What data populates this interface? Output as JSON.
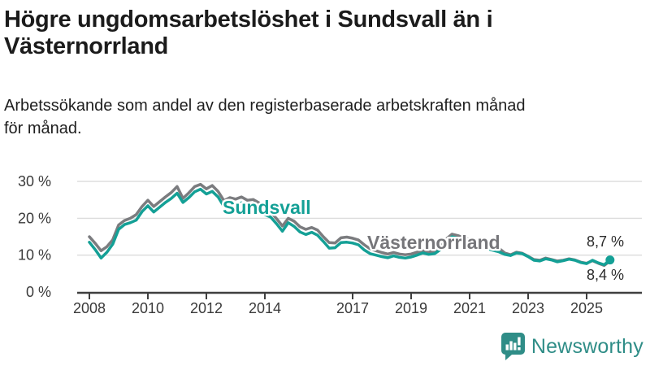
{
  "header": {
    "title_lines": [
      "Högre ungdomsarbetslöshet i Sundsvall än i",
      "Västernorrland"
    ],
    "subtitle_lines": [
      "Arbetssökande som andel av den registerbaserade arbetskraften månad",
      "för månad."
    ]
  },
  "footer": {
    "brand": "Newsworthy"
  },
  "colors": {
    "sundsvall": "#14a096",
    "vasternorrland": "#7b7c7f",
    "vasternorrland_label": "#76767a",
    "grid": "#dcdcdc",
    "axis": "#3f3f3f",
    "tick_text": "#3a3a3a",
    "value_text": "#2b2b2b",
    "brand_teal": "#2f8d87"
  },
  "chart_data": {
    "type": "line",
    "title": "Högre ungdomsarbetslöshet i Sundsvall än i Västernorrland",
    "subtitle": "Arbetssökande som andel av den registerbaserade arbetskraften månad för månad.",
    "xlabel": "",
    "ylabel": "",
    "y_unit": "%",
    "x_unit": "year (monthly data)",
    "x_start": 2008.0,
    "x_step": 0.2,
    "xlim": [
      2007.6,
      2026.0
    ],
    "ylim": [
      0,
      33
    ],
    "grid": "horizontal",
    "y_ticks": [
      0,
      10,
      20,
      30
    ],
    "y_tick_labels": [
      "0 %",
      "10 %",
      "20 %",
      "30 %"
    ],
    "x_ticks": [
      2008,
      2010,
      2012,
      2014,
      2017,
      2019,
      2021,
      2023,
      2025
    ],
    "x_tick_labels": [
      "2008",
      "2010",
      "2012",
      "2014",
      "2017",
      "2019",
      "2021",
      "2023",
      "2025"
    ],
    "legend_position": "inline-labels",
    "series": [
      {
        "name": "Sundsvall",
        "color": "#14a096",
        "end_label": "8,7 %",
        "last_value": 8.7,
        "values": [
          13.5,
          11.5,
          9.2,
          10.8,
          13.0,
          17.0,
          18.3,
          18.8,
          19.5,
          21.8,
          23.4,
          21.7,
          23.0,
          24.3,
          25.4,
          26.8,
          24.3,
          25.6,
          27.2,
          27.9,
          26.6,
          27.3,
          25.8,
          23.2,
          24.0,
          23.6,
          24.2,
          23.2,
          23.5,
          22.6,
          21.0,
          20.3,
          18.5,
          16.5,
          18.8,
          17.8,
          16.3,
          15.6,
          16.2,
          15.4,
          13.7,
          11.9,
          12.0,
          13.4,
          13.5,
          13.3,
          12.8,
          11.4,
          10.4,
          10.0,
          9.6,
          9.3,
          9.8,
          9.4,
          9.2,
          9.5,
          10.0,
          10.6,
          10.2,
          10.4,
          11.5,
          13.8,
          15.0,
          14.6,
          14.0,
          13.6,
          13.0,
          12.4,
          11.8,
          11.3,
          10.9,
          10.2,
          9.9,
          10.6,
          10.4,
          9.6,
          8.6,
          8.4,
          9.0,
          8.7,
          8.2,
          8.5,
          8.9,
          8.6,
          8.0,
          7.7,
          8.6,
          7.9,
          7.4,
          8.7
        ]
      },
      {
        "name": "Västernorrland",
        "color": "#7b7c7f",
        "end_label": "8,4 %",
        "last_value": 8.4,
        "values": [
          15.0,
          13.2,
          11.2,
          12.3,
          14.2,
          18.2,
          19.4,
          20.0,
          21.0,
          23.2,
          24.9,
          23.2,
          24.5,
          25.8,
          27.0,
          28.6,
          25.4,
          26.9,
          28.6,
          29.2,
          28.0,
          28.9,
          27.3,
          24.8,
          25.6,
          25.2,
          25.8,
          24.9,
          25.1,
          24.2,
          22.4,
          21.7,
          19.9,
          17.9,
          20.0,
          19.2,
          17.7,
          17.0,
          17.5,
          16.8,
          15.0,
          13.4,
          13.3,
          14.7,
          14.9,
          14.6,
          14.1,
          12.8,
          11.7,
          11.2,
          10.7,
          10.3,
          10.7,
          10.3,
          10.1,
          10.3,
          10.8,
          11.2,
          10.9,
          11.1,
          12.1,
          14.4,
          15.7,
          15.3,
          14.7,
          14.3,
          13.7,
          13.1,
          12.5,
          12.1,
          11.9,
          10.6,
          10.1,
          10.8,
          10.5,
          9.7,
          8.8,
          8.6,
          9.2,
          8.8,
          8.4,
          8.6,
          9.0,
          8.7,
          8.1,
          7.8,
          8.5,
          7.8,
          7.2,
          8.4
        ]
      }
    ]
  }
}
